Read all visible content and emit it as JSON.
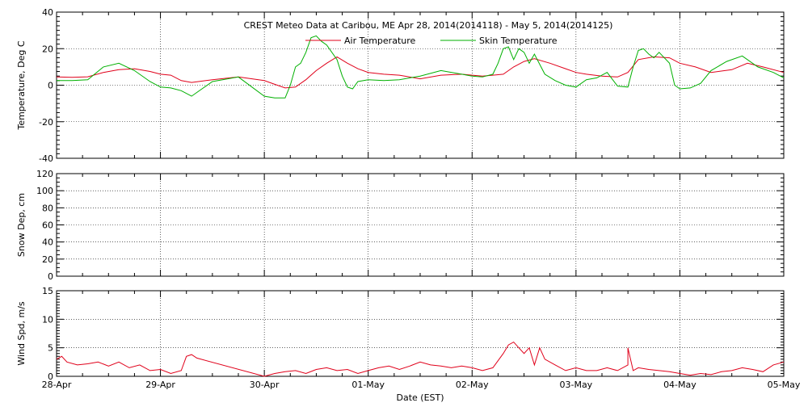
{
  "colors": {
    "air": "#e0001a",
    "skin": "#00b000",
    "wind": "#e0001a"
  },
  "chart_data": [
    {
      "type": "line",
      "title": "CREST Meteo Data at Caribou, ME   Apr 28, 2014(2014118) - May  5, 2014(2014125)",
      "ylabel": "Temperature, Deg C",
      "xlabel": "",
      "ylim": [
        -40,
        40
      ],
      "xlim": [
        0,
        7
      ],
      "yticks": [
        "-40",
        "-20",
        "0",
        "20",
        "40"
      ],
      "grid": true,
      "legend": "top-center",
      "series": [
        {
          "name": "Air Temperature",
          "color_key": "air",
          "x": [
            0,
            0.15,
            0.3,
            0.45,
            0.6,
            0.75,
            0.9,
            1.0,
            1.1,
            1.2,
            1.3,
            1.5,
            1.75,
            2.0,
            2.1,
            2.2,
            2.3,
            2.4,
            2.5,
            2.6,
            2.7,
            2.8,
            2.9,
            3.0,
            3.15,
            3.3,
            3.5,
            3.7,
            3.9,
            4.0,
            4.1,
            4.2,
            4.3,
            4.4,
            4.5,
            4.6,
            4.75,
            4.9,
            5.0,
            5.1,
            5.25,
            5.4,
            5.5,
            5.6,
            5.75,
            5.9,
            6.0,
            6.15,
            6.3,
            6.5,
            6.65,
            6.8,
            7.0
          ],
          "y": [
            4.5,
            4.3,
            4.6,
            7,
            8.5,
            9,
            7.5,
            6,
            5.5,
            2.5,
            1.5,
            3,
            4.5,
            2.5,
            0.5,
            -1.5,
            -1,
            3,
            8,
            12,
            15.5,
            12,
            9,
            7,
            6,
            5.5,
            3.5,
            5.5,
            6,
            5.5,
            5,
            5.5,
            6,
            10,
            13,
            14.5,
            12,
            9,
            7,
            6,
            5,
            4.5,
            7,
            14,
            15.5,
            15,
            12,
            10,
            7,
            8.5,
            12,
            10,
            7
          ]
        },
        {
          "name": "Skin Temperature",
          "color_key": "skin",
          "x": [
            0,
            0.15,
            0.3,
            0.45,
            0.6,
            0.75,
            0.9,
            1.0,
            1.1,
            1.2,
            1.3,
            1.35,
            1.4,
            1.5,
            1.75,
            2.0,
            2.1,
            2.2,
            2.25,
            2.3,
            2.35,
            2.4,
            2.45,
            2.5,
            2.55,
            2.6,
            2.7,
            2.75,
            2.8,
            2.85,
            2.9,
            3.0,
            3.15,
            3.3,
            3.5,
            3.7,
            3.9,
            4.0,
            4.1,
            4.2,
            4.25,
            4.3,
            4.35,
            4.4,
            4.45,
            4.5,
            4.55,
            4.6,
            4.7,
            4.8,
            4.9,
            5.0,
            5.1,
            5.2,
            5.3,
            5.4,
            5.5,
            5.55,
            5.6,
            5.65,
            5.7,
            5.75,
            5.8,
            5.9,
            5.95,
            6.0,
            6.1,
            6.2,
            6.3,
            6.45,
            6.6,
            6.75,
            6.9,
            7.0
          ],
          "y": [
            2.5,
            2.5,
            3,
            10,
            12,
            8,
            2,
            -1,
            -1.5,
            -3,
            -6,
            -4,
            -2,
            2,
            4.5,
            -6,
            -7,
            -7,
            0,
            10,
            12,
            18,
            26,
            27,
            24,
            22,
            14,
            5,
            -1,
            -2,
            2,
            3,
            2.5,
            3,
            5,
            8,
            6,
            5,
            4.5,
            6,
            12,
            20,
            21,
            14,
            20,
            18,
            12,
            17,
            6,
            2.5,
            0,
            -1,
            3,
            4,
            7,
            -0.5,
            -1,
            10,
            19,
            20,
            17,
            15,
            18,
            12,
            0,
            -2,
            -1.5,
            1,
            8,
            13,
            16,
            10,
            7,
            4
          ]
        }
      ]
    },
    {
      "type": "line",
      "ylabel": "Snow Dep, cm",
      "ylim": [
        0,
        120
      ],
      "xlim": [
        0,
        7
      ],
      "yticks": [
        "0",
        "20",
        "40",
        "60",
        "80",
        "100",
        "120"
      ],
      "grid": true,
      "series": []
    },
    {
      "type": "line",
      "ylabel": "Wind Spd, m/s",
      "xlabel": "Date (EST)",
      "ylim": [
        0,
        15
      ],
      "xlim": [
        0,
        7
      ],
      "yticks": [
        "0",
        "5",
        "10",
        "15"
      ],
      "xticks": [
        "28-Apr",
        "29-Apr",
        "30-Apr",
        "01-May",
        "02-May",
        "03-May",
        "04-May",
        "05-May"
      ],
      "grid": true,
      "series": [
        {
          "name": "",
          "color_key": "wind",
          "x": [
            0,
            0.05,
            0.1,
            0.2,
            0.3,
            0.4,
            0.5,
            0.6,
            0.7,
            0.8,
            0.9,
            1.0,
            1.1,
            1.2,
            1.25,
            1.3,
            1.35,
            2.0,
            2.1,
            2.2,
            2.3,
            2.4,
            2.5,
            2.6,
            2.7,
            2.8,
            2.9,
            3.0,
            3.1,
            3.2,
            3.3,
            3.4,
            3.5,
            3.6,
            3.7,
            3.8,
            3.9,
            4.0,
            4.1,
            4.2,
            4.3,
            4.35,
            4.4,
            4.45,
            4.5,
            4.55,
            4.6,
            4.65,
            4.7,
            4.8,
            4.9,
            5.0,
            5.1,
            5.2,
            5.3,
            5.4,
            5.5,
            5.5,
            5.55,
            5.6,
            5.7,
            5.8,
            5.9,
            6.0,
            6.1,
            6.2,
            6.3,
            6.4,
            6.5,
            6.6,
            6.7,
            6.8,
            6.9,
            7.0
          ],
          "y": [
            3,
            3.5,
            2.5,
            2,
            2.2,
            2.5,
            1.8,
            2.5,
            1.5,
            2,
            1,
            1.2,
            0.5,
            1,
            3.5,
            3.8,
            3.2,
            0,
            0.5,
            0.8,
            1,
            0.5,
            1.2,
            1.5,
            1,
            1.2,
            0.5,
            1,
            1.5,
            1.8,
            1.2,
            1.8,
            2.5,
            2,
            1.8,
            1.5,
            1.8,
            1.5,
            1,
            1.5,
            4,
            5.5,
            6,
            5,
            4,
            5,
            2,
            5,
            3,
            2,
            1,
            1.5,
            1,
            1,
            1.5,
            1,
            2,
            5,
            1,
            1.5,
            1.2,
            1,
            0.8,
            0.5,
            0.2,
            0.5,
            0.3,
            0.8,
            1,
            1.5,
            1.2,
            0.8,
            2,
            2.5
          ]
        }
      ]
    }
  ]
}
